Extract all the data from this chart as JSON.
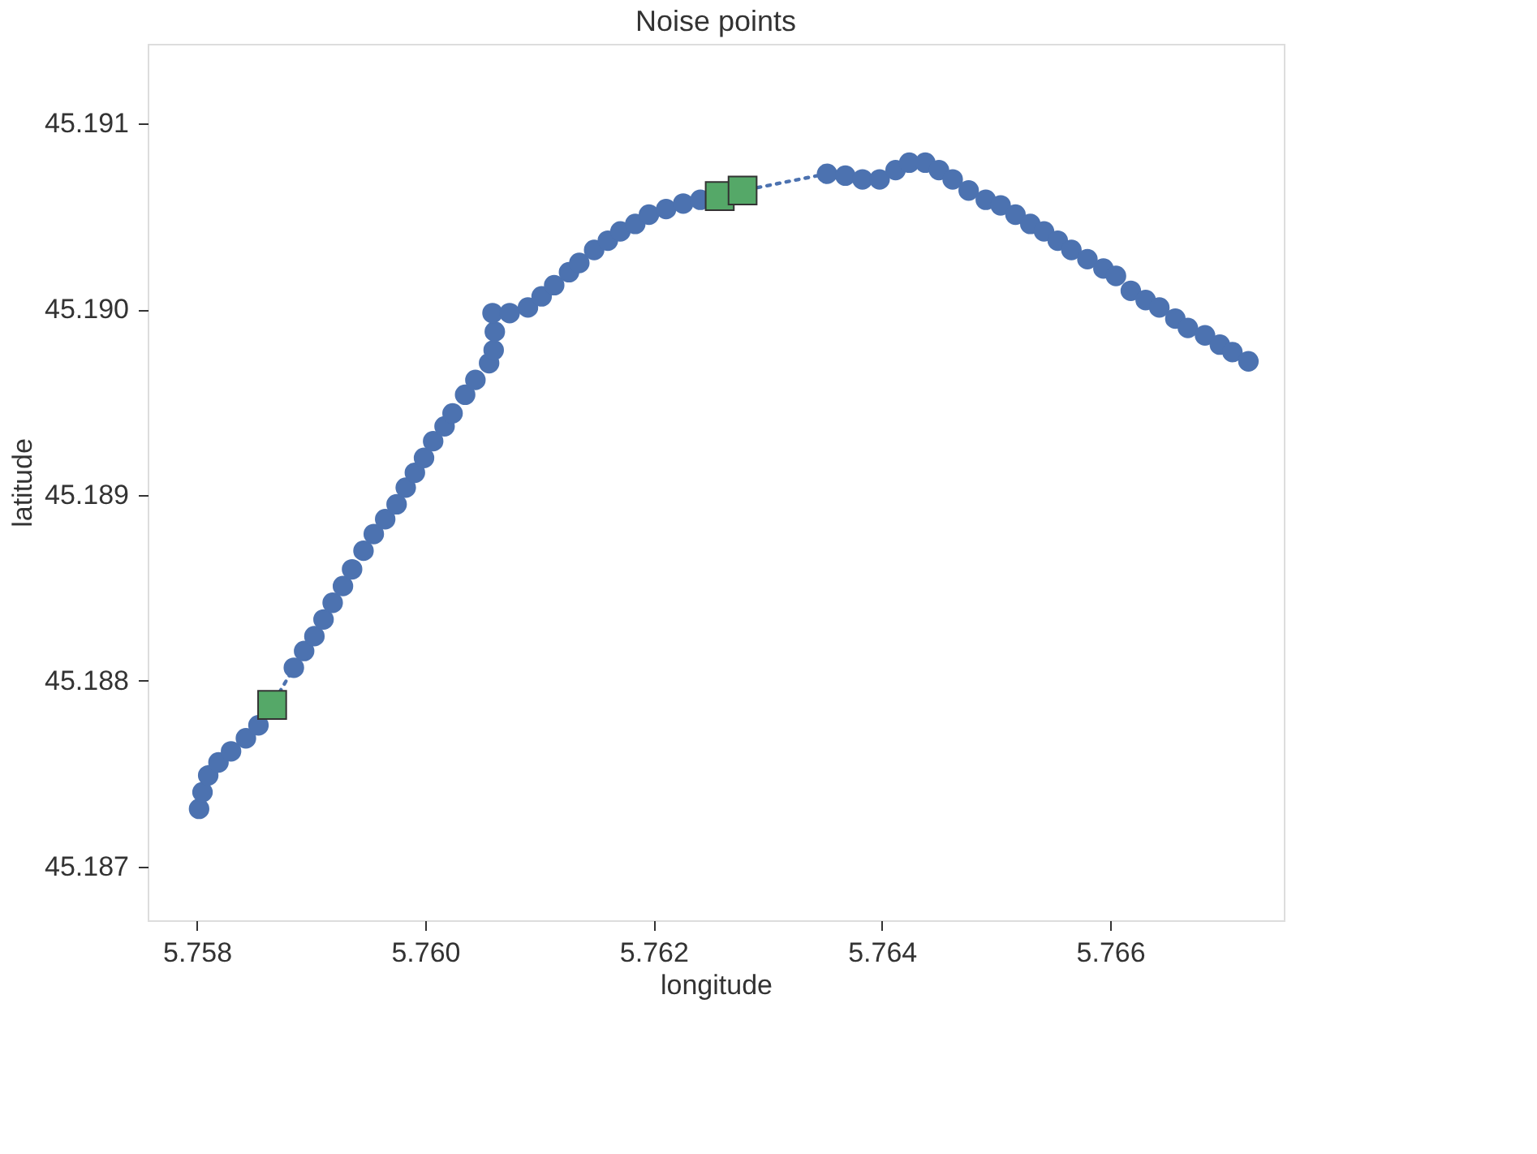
{
  "chart_data": {
    "type": "scatter",
    "title": "Noise points",
    "xlabel": "longitude",
    "ylabel": "latitude",
    "xlim": [
      5.75757,
      5.76752
    ],
    "ylim": [
      45.18671,
      45.19143
    ],
    "xticks": [
      {
        "value": 5.758,
        "label": "5.758"
      },
      {
        "value": 5.76,
        "label": "5.760"
      },
      {
        "value": 5.762,
        "label": "5.762"
      },
      {
        "value": 5.764,
        "label": "5.764"
      },
      {
        "value": 5.766,
        "label": "5.766"
      }
    ],
    "yticks": [
      {
        "value": 45.187,
        "label": "45.187"
      },
      {
        "value": 45.188,
        "label": "45.188"
      },
      {
        "value": 45.189,
        "label": "45.189"
      },
      {
        "value": 45.19,
        "label": "45.190"
      },
      {
        "value": 45.191,
        "label": "45.191"
      }
    ],
    "grid": false,
    "series": [
      {
        "type": "line",
        "line_style": "dotted",
        "marker": "none",
        "color": "#4c72b0",
        "x": [
          5.75854,
          5.75866,
          5.75885
        ],
        "values": [
          45.18776,
          45.18787,
          45.18807
        ]
      },
      {
        "type": "line",
        "line_style": "dotted",
        "marker": "none",
        "color": "#4c72b0",
        "x": [
          5.76241,
          5.76258,
          5.76278,
          5.76352
        ],
        "values": [
          45.19059,
          45.19061,
          45.19064,
          45.19073
        ]
      },
      {
        "marker": "circle",
        "color": "#4c72b0",
        "x": [
          5.75802,
          5.75805,
          5.7581,
          5.75819,
          5.7583,
          5.75843,
          5.75854,
          5.75885,
          5.75894,
          5.75903,
          5.75911,
          5.75919,
          5.75928,
          5.75936,
          5.75946,
          5.75955,
          5.75965,
          5.75975,
          5.75983,
          5.75991,
          5.75999,
          5.76007,
          5.76017,
          5.76024,
          5.76035,
          5.76044,
          5.76056,
          5.7606,
          5.76061,
          5.76059,
          5.76074,
          5.7609,
          5.76102,
          5.76113,
          5.76126,
          5.76135,
          5.76148,
          5.7616,
          5.76171,
          5.76184,
          5.76196,
          5.76211,
          5.76226,
          5.76241,
          5.76352,
          5.76368,
          5.76383,
          5.76398,
          5.76412,
          5.76424,
          5.76438,
          5.7645,
          5.76462,
          5.76476,
          5.76491,
          5.76504,
          5.76517,
          5.7653,
          5.76542,
          5.76554,
          5.76566,
          5.7658,
          5.76594,
          5.76605,
          5.76618,
          5.76631,
          5.76643,
          5.76657,
          5.76668,
          5.76683,
          5.76696,
          5.76707,
          5.76721
        ],
        "values": [
          45.18731,
          45.1874,
          45.18749,
          45.18756,
          45.18762,
          45.18769,
          45.18776,
          45.18807,
          45.18816,
          45.18824,
          45.18833,
          45.18842,
          45.18851,
          45.1886,
          45.1887,
          45.18879,
          45.18887,
          45.18895,
          45.18904,
          45.18912,
          45.1892,
          45.18929,
          45.18937,
          45.18944,
          45.18954,
          45.18962,
          45.18971,
          45.18978,
          45.18988,
          45.18998,
          45.18998,
          45.19001,
          45.19007,
          45.19013,
          45.1902,
          45.19025,
          45.19032,
          45.19037,
          45.19042,
          45.19046,
          45.19051,
          45.19054,
          45.19057,
          45.19059,
          45.19073,
          45.19072,
          45.1907,
          45.1907,
          45.19075,
          45.19079,
          45.19079,
          45.19075,
          45.1907,
          45.19064,
          45.19059,
          45.19056,
          45.19051,
          45.19046,
          45.19042,
          45.19037,
          45.19032,
          45.19027,
          45.19022,
          45.19018,
          45.1901,
          45.19005,
          45.19001,
          45.18995,
          45.1899,
          45.18986,
          45.18981,
          45.18977,
          45.18972
        ]
      },
      {
        "marker": "square",
        "color": "#55a868",
        "x": [
          5.75866,
          5.76258,
          5.76278
        ],
        "values": [
          45.18787,
          45.19061,
          45.19064
        ]
      }
    ]
  }
}
